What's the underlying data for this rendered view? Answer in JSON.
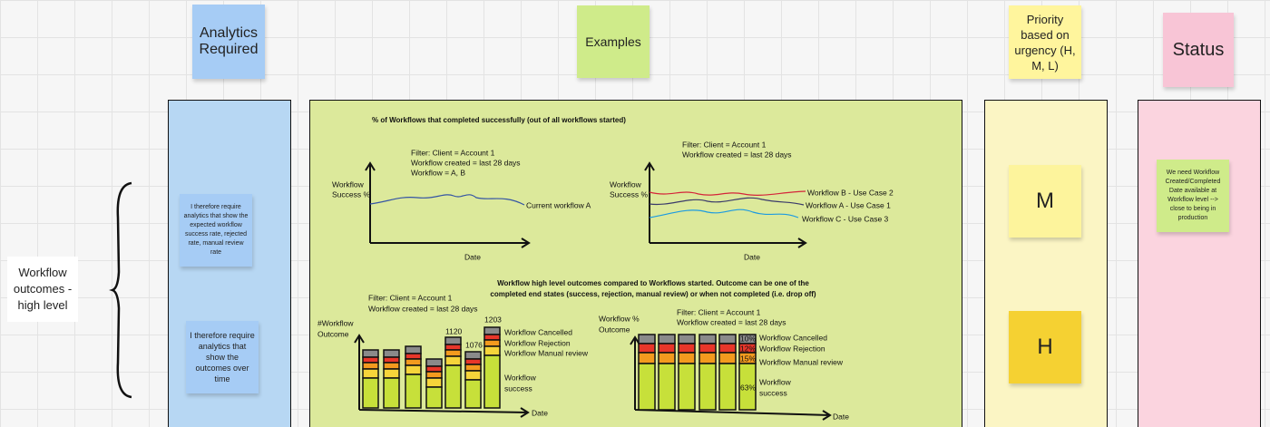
{
  "header": {
    "analytics": "Analytics Required",
    "examples": "Examples",
    "priority": "Priority based on urgency (H, M, L)",
    "status": "Status"
  },
  "row": {
    "label": "Workflow outcomes - high level",
    "analytics": [
      "I therefore require analytics that show the expected workflow success rate, rejected rate, manual review rate",
      "I therefore require analytics that show the outcomes over time"
    ],
    "priority": [
      "M",
      "H"
    ],
    "status": "We need Workflow Created/Completed Date available at Workflow level --> close to being in production"
  },
  "examples": {
    "section1_title": "% of Workflows that completed successfully (out of all workflows started)",
    "chart_a": {
      "filter": [
        "Filter: Client = Account 1",
        "Workflow created = last 28 days",
        "Workflow = A, B"
      ],
      "y_label": [
        "Workflow",
        "Success %"
      ],
      "x_label": "Date",
      "series": [
        "Current workflow A"
      ]
    },
    "chart_b": {
      "filter": [
        "Filter: Client = Account 1",
        "Workflow created = last 28 days"
      ],
      "y_label": [
        "Workflow",
        "Success %"
      ],
      "x_label": "Date",
      "series": [
        "Workflow B - Use Case 2",
        "Workflow A - Use Case 1",
        "Workflow C - Use Case 3"
      ]
    },
    "section2_title": [
      "Workflow high level outcomes compared to Workflows started. Outcome can be one of the",
      "completed end states (success, rejection, manual review) or when not completed (i.e. drop off)"
    ],
    "chart_c": {
      "filter": [
        "Filter: Client = Account 1",
        "Workflow created = last 28 days"
      ],
      "y_label": [
        "#Workflow",
        "Outcome"
      ],
      "x_label": "Date",
      "legend": [
        "Workflow Cancelled",
        "Workflow Rejection",
        "Workflow Manual review",
        "Workflow",
        "success"
      ],
      "bar_labels": [
        "1120",
        "1076",
        "1203"
      ]
    },
    "chart_d": {
      "filter": [
        "Filter: Client = Account 1",
        "Workflow created = last 28 days"
      ],
      "y_label": [
        "Workflow %",
        "Outcome"
      ],
      "x_label": "Date",
      "legend": [
        "Workflow Cancelled",
        "Workflow Rejection",
        "Workflow Manual review",
        "Workflow",
        "success"
      ],
      "percent_labels": [
        "10%",
        "12%",
        "15%",
        "63%"
      ]
    }
  }
}
